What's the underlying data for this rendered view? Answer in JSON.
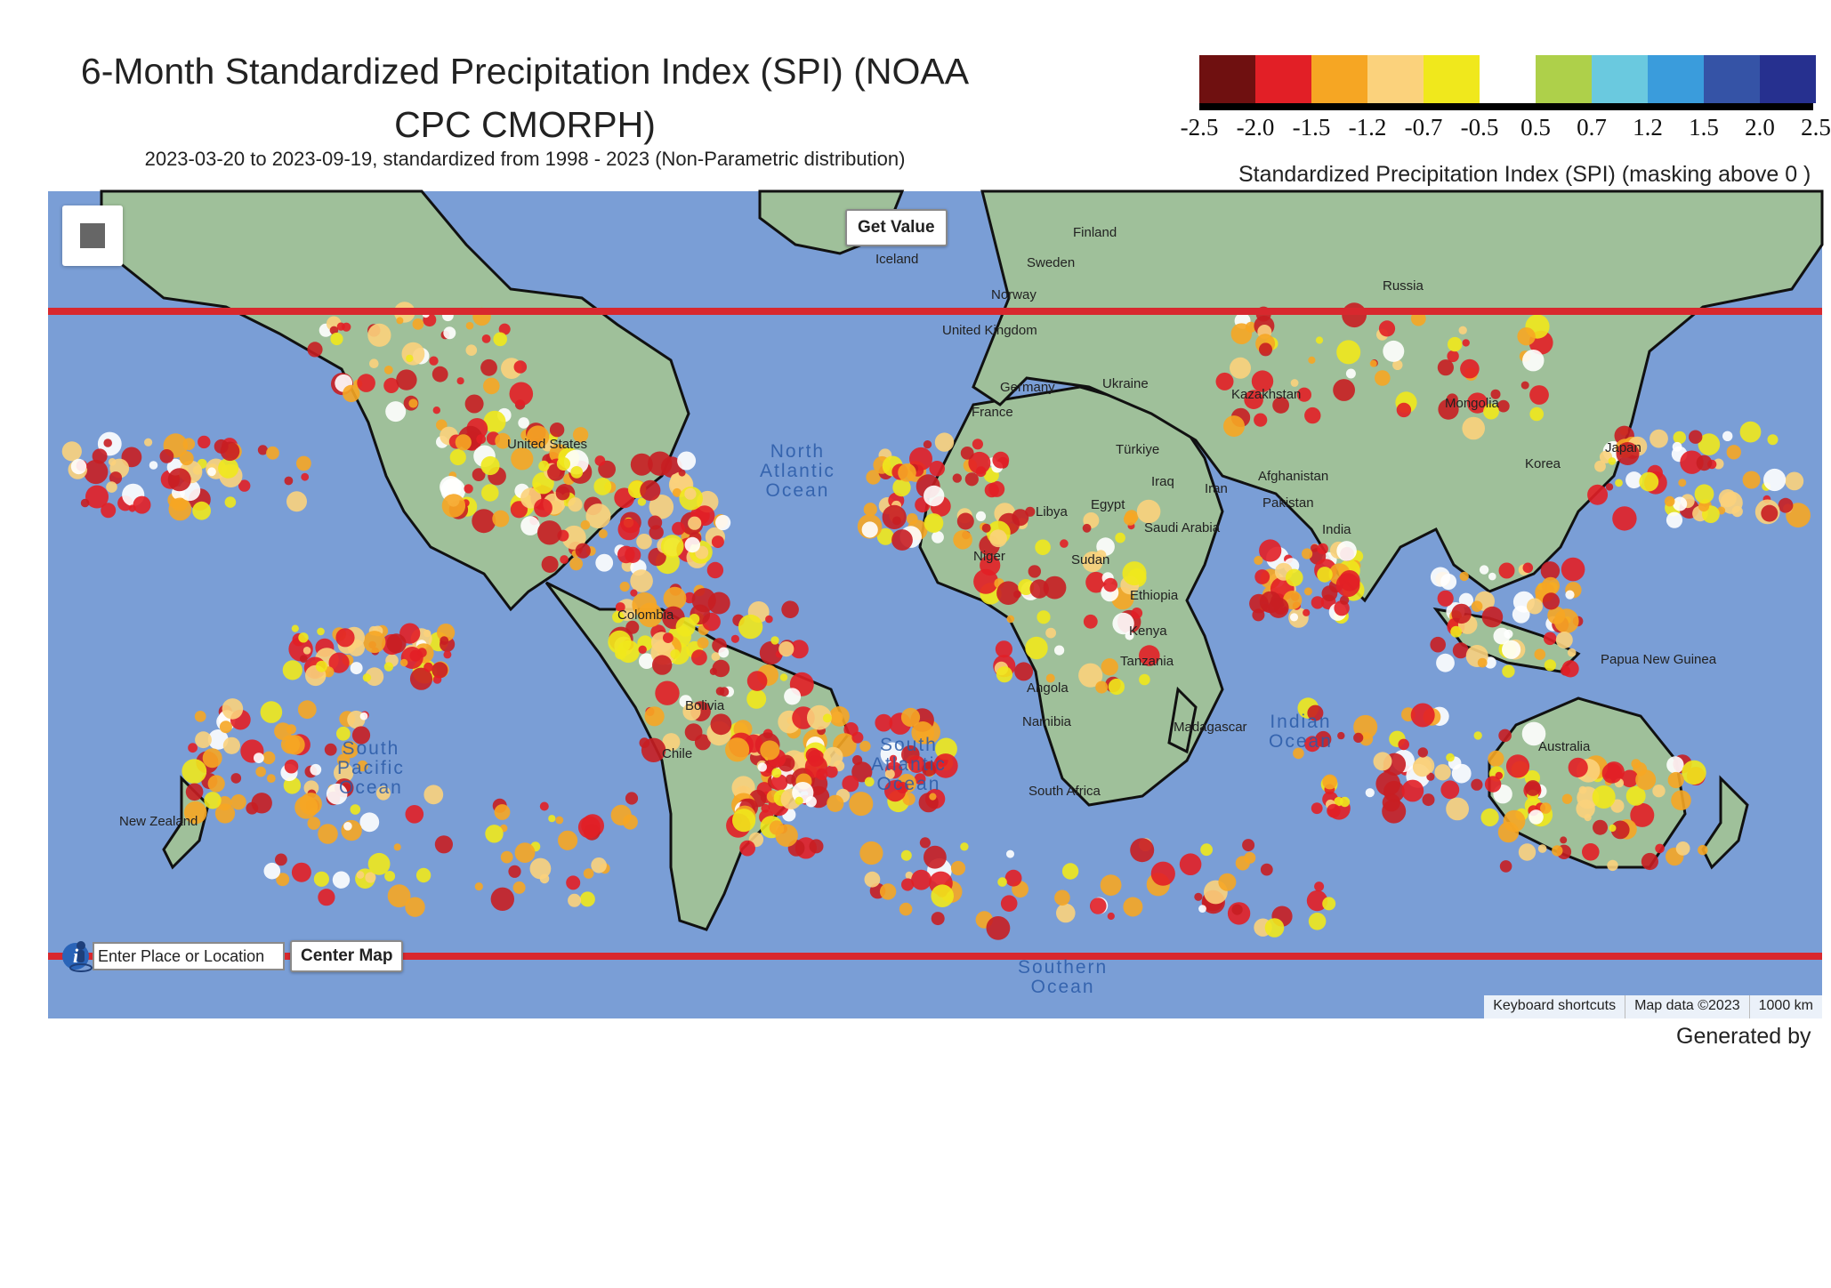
{
  "title_line1": "6-Month Standardized Precipitation Index (SPI) (NOAA",
  "title_line2": "CPC CMORPH)",
  "subtitle": "2023-03-20 to 2023-09-19, standardized from 1998 - 2023 (Non-Parametric distribution)",
  "legend": {
    "caption": "Standardized Precipitation Index (SPI) (masking above 0 )",
    "colors": [
      "#6f1010",
      "#e21f26",
      "#f6a623",
      "#fbd27c",
      "#f0e81c",
      "#ffffff",
      "#aed04a",
      "#6ac9df",
      "#3a9cdc",
      "#3553a6",
      "#26308f"
    ],
    "ticks": [
      "-2.5",
      "-2.0",
      "-1.5",
      "-1.2",
      "-0.7",
      "-0.5",
      "0.5",
      "0.7",
      "1.2",
      "1.5",
      "2.0",
      "2.5"
    ]
  },
  "map": {
    "get_value_label": "Get Value",
    "search_placeholder": "Enter Place or Location",
    "center_map_label": "Center Map",
    "attribution": {
      "keyboard": "Keyboard shortcuts",
      "mapdata": "Map data ©2023",
      "scale": "1000 km"
    },
    "land_color": "#9fc09a",
    "ocean_color": "#7a9ed6",
    "bound_color": "#d8282e",
    "labels": {
      "finland": "Finland",
      "sweden": "Sweden",
      "norway": "Norway",
      "iceland": "Iceland",
      "russia": "Russia",
      "kingdom": "United Kingdom",
      "ukraine": "Ukraine",
      "germany": "Germany",
      "france": "France",
      "turkiye": "Türkiye",
      "kazakhstan": "Kazakhstan",
      "mongolia": "Mongolia",
      "japan": "Japan",
      "korea": "Korea",
      "iraq": "Iraq",
      "iran": "Iran",
      "afghanistan": "Afghanistan",
      "pakistan": "Pakistan",
      "india": "India",
      "egypt": "Egypt",
      "libya": "Libya",
      "saudi": "Saudi Arabia",
      "niger": "Niger",
      "sudan": "Sudan",
      "ethiopia": "Ethiopia",
      "kenya": "Kenya",
      "tanzania": "Tanzania",
      "angola": "Angola",
      "namibia": "Namibia",
      "madagascar": "Madagascar",
      "south_africa": "South Africa",
      "australia": "Australia",
      "united_states": "United States",
      "colombia": "Colombia",
      "bolivia": "Bolivia",
      "chile": "Chile",
      "new_zealand": "New Zealand",
      "papua": "Papua New Guinea"
    },
    "oceans": {
      "north_atlantic": "North\nAtlantic\nOcean",
      "south_pacific": "South\nPacific\nOcean",
      "south_atlantic": "South\nAtlantic\nOcean",
      "indian": "Indian\nOcean",
      "southern": "Southern\nOcean"
    }
  },
  "footer": "Generated by"
}
